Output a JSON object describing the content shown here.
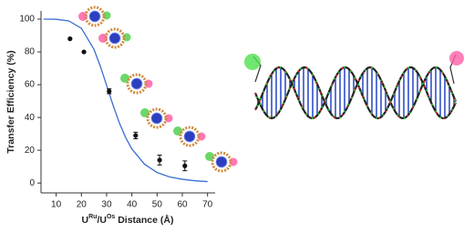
{
  "chart_data": {
    "type": "scatter",
    "y_label": "Transfer Efficiency (%)",
    "x_label_parts": [
      "U",
      "Ru",
      "/U",
      "Os",
      " Distance (Å)"
    ],
    "xlim": [
      4,
      73
    ],
    "ylim": [
      -6,
      105
    ],
    "xticks": [
      10,
      20,
      30,
      40,
      50,
      60,
      70
    ],
    "yticks": [
      0,
      20,
      40,
      60,
      80,
      100
    ],
    "series": [
      {
        "type": "line",
        "color": "#3a6fd1",
        "x": [
          5,
          10,
          15,
          20,
          25,
          27.5,
          30,
          32.5,
          35,
          37.5,
          40,
          45,
          50,
          55,
          60,
          65,
          70
        ],
        "values": [
          100,
          99.9,
          98.9,
          94.4,
          81.5,
          71.3,
          59.6,
          47.7,
          36.9,
          27.9,
          20.8,
          11.5,
          6.4,
          3.7,
          2.3,
          1.4,
          0.9
        ]
      },
      {
        "type": "scatter",
        "color": "#111111",
        "x": [
          15.5,
          21,
          31,
          41.5,
          51,
          61
        ],
        "values": [
          88,
          80,
          56,
          29,
          14,
          10.5
        ],
        "errors": [
          null,
          null,
          1.5,
          2,
          3,
          3
        ]
      }
    ]
  }
}
